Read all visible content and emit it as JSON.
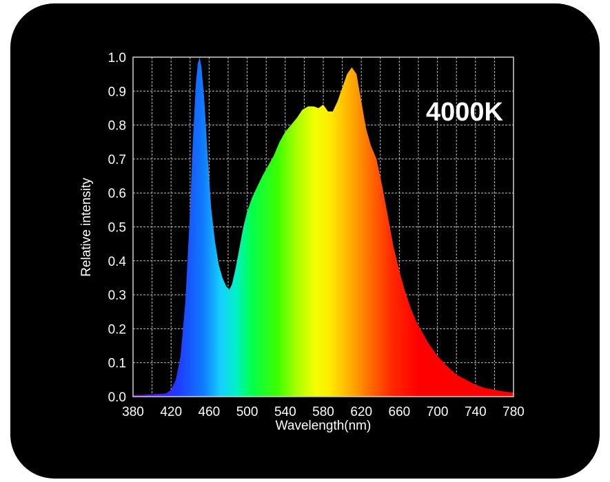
{
  "chart_data": {
    "type": "area",
    "title": "",
    "annotation": "4000K",
    "xlabel": "Wavelength(nm)",
    "ylabel": "Relative intensity",
    "xlim": [
      380,
      780
    ],
    "ylim": [
      0,
      1.0
    ],
    "xticks": [
      "380",
      "420",
      "460",
      "500",
      "540",
      "580",
      "620",
      "660",
      "700",
      "740",
      "780"
    ],
    "yticks": [
      "0.0",
      "0.1",
      "0.2",
      "0.3",
      "0.4",
      "0.5",
      "0.6",
      "0.7",
      "0.8",
      "0.9",
      "1.0"
    ],
    "grid": true,
    "x": [
      380,
      390,
      400,
      410,
      415,
      420,
      425,
      430,
      435,
      440,
      443,
      446,
      448,
      450,
      452,
      455,
      458,
      462,
      466,
      470,
      474,
      478,
      481,
      484,
      488,
      492,
      496,
      500,
      505,
      510,
      516,
      522,
      528,
      534,
      540,
      546,
      552,
      558,
      564,
      570,
      575,
      580,
      585,
      590,
      595,
      600,
      605,
      610,
      615,
      620,
      625,
      630,
      636,
      642,
      648,
      654,
      660,
      666,
      672,
      678,
      684,
      690,
      700,
      710,
      720,
      730,
      740,
      750,
      760,
      770,
      780
    ],
    "values": [
      0.005,
      0.005,
      0.007,
      0.008,
      0.01,
      0.02,
      0.05,
      0.12,
      0.28,
      0.55,
      0.76,
      0.92,
      0.98,
      1.0,
      0.97,
      0.87,
      0.73,
      0.56,
      0.46,
      0.39,
      0.35,
      0.325,
      0.315,
      0.33,
      0.38,
      0.44,
      0.5,
      0.545,
      0.585,
      0.615,
      0.65,
      0.68,
      0.71,
      0.75,
      0.78,
      0.8,
      0.82,
      0.845,
      0.855,
      0.855,
      0.85,
      0.86,
      0.84,
      0.84,
      0.87,
      0.91,
      0.95,
      0.97,
      0.95,
      0.87,
      0.79,
      0.74,
      0.7,
      0.62,
      0.53,
      0.44,
      0.37,
      0.31,
      0.26,
      0.22,
      0.19,
      0.16,
      0.12,
      0.09,
      0.065,
      0.05,
      0.035,
      0.025,
      0.02,
      0.015,
      0.012
    ],
    "colors": {
      "background": "#000000",
      "grid": "#bfbfbf",
      "text": "#ffffff"
    }
  }
}
